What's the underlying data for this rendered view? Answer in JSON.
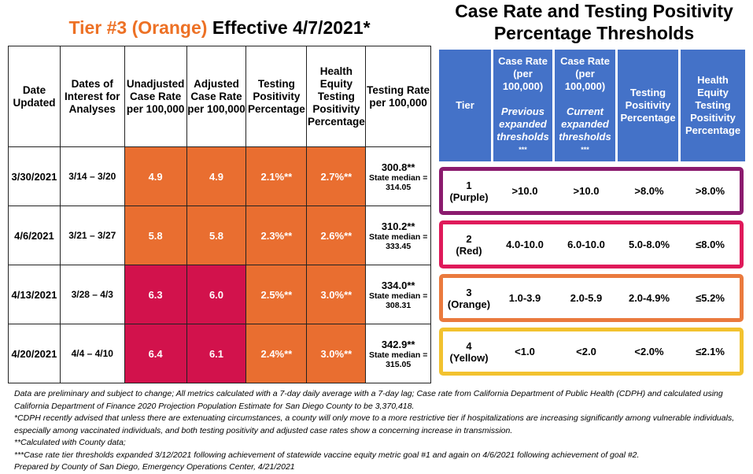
{
  "left_title": {
    "tier": "Tier #3 (Orange)",
    "effective": "Effective 4/7/2021*"
  },
  "right_title": "Case Rate and Testing Positivity Percentage Thresholds",
  "colors": {
    "orange": "#E96E30",
    "red": "#D2124C",
    "header_blue": "#4472C8",
    "purple": "#8B1B6E",
    "tier_red": "#DF1A5A",
    "tier_orange": "#EA7A3E",
    "yellow": "#F2C22F"
  },
  "table": {
    "headers": [
      "Date Updated",
      "Dates of Interest for Analyses",
      "Unadjusted Case Rate per 100,000",
      "Adjusted Case Rate per 100,000",
      "Testing Positivity Percentage",
      "Health Equity Testing Positivity Percentage",
      "Testing Rate per 100,000"
    ],
    "rows": [
      {
        "date": "3/30/2021",
        "interest": "3/14 – 3/20",
        "unadj": "4.9",
        "adj": "4.9",
        "tp": "2.1%**",
        "he": "2.7%**",
        "rate": "300.8**",
        "median_label": "State median =",
        "median": "314.05",
        "unadj_tier": "orange",
        "adj_tier": "orange"
      },
      {
        "date": "4/6/2021",
        "interest": "3/21 – 3/27",
        "unadj": "5.8",
        "adj": "5.8",
        "tp": "2.3%**",
        "he": "2.6%**",
        "rate": "310.2**",
        "median_label": "State median =",
        "median": "333.45",
        "unadj_tier": "orange",
        "adj_tier": "orange"
      },
      {
        "date": "4/13/2021",
        "interest": "3/28 – 4/3",
        "unadj": "6.3",
        "adj": "6.0",
        "tp": "2.5%**",
        "he": "3.0%**",
        "rate": "334.0**",
        "median_label": "State median =",
        "median": "308.31",
        "unadj_tier": "red",
        "adj_tier": "red"
      },
      {
        "date": "4/20/2021",
        "interest": "4/4 – 4/10",
        "unadj": "6.4",
        "adj": "6.1",
        "tp": "2.4%**",
        "he": "3.0%**",
        "rate": "342.9**",
        "median_label": "State median =",
        "median": "315.05",
        "unadj_tier": "red",
        "adj_tier": "red"
      }
    ]
  },
  "thresholds": {
    "headers": {
      "tier": "Tier",
      "prev_top": "Case Rate (per 100,000)",
      "prev_sub": "Previous expanded thresholds",
      "prev_mark": "***",
      "cur_top": "Case Rate (per 100,000)",
      "cur_sub": "Current expanded thresholds",
      "cur_mark": "***",
      "tp": "Testing Positivity Percentage",
      "he": "Health Equity Testing Positivity Percentage"
    },
    "tiers": [
      {
        "num": "1",
        "name": "(Purple)",
        "prev": ">10.0",
        "cur": ">10.0",
        "tp": ">8.0%",
        "he": ">8.0%"
      },
      {
        "num": "2",
        "name": "(Red)",
        "prev": "4.0-10.0",
        "cur": "6.0-10.0",
        "tp": "5.0-8.0%",
        "he": "≤8.0%"
      },
      {
        "num": "3",
        "name": "(Orange)",
        "prev": "1.0-3.9",
        "cur": "2.0-5.9",
        "tp": "2.0-4.9%",
        "he": "≤5.2%"
      },
      {
        "num": "4",
        "name": "(Yellow)",
        "prev": "<1.0",
        "cur": "<2.0",
        "tp": "<2.0%",
        "he": "≤2.1%"
      }
    ]
  },
  "notes": [
    "Data are preliminary and subject to change; All metrics calculated with a 7-day daily average with a 7-day lag; Case rate from California Department of Public Health (CDPH) and calculated using California Department of Finance 2020 Projection Population Estimate for San Diego County to be 3,370,418.",
    "*CDPH recently advised that unless there are extenuating circumstances, a county will only move to a more restrictive tier if hospitalizations are increasing significantly among vulnerable individuals, especially among vaccinated individuals, and both testing positivity and adjusted case rates show a concerning increase in transmission.",
    "**Calculated with County data;",
    "***Case rate tier thresholds expanded 3/12/2021 following achievement of statewide vaccine equity metric goal #1 and again on 4/6/2021 following achievement of goal #2.",
    "Prepared by County of San Diego, Emergency Operations Center, 4/21/2021"
  ]
}
